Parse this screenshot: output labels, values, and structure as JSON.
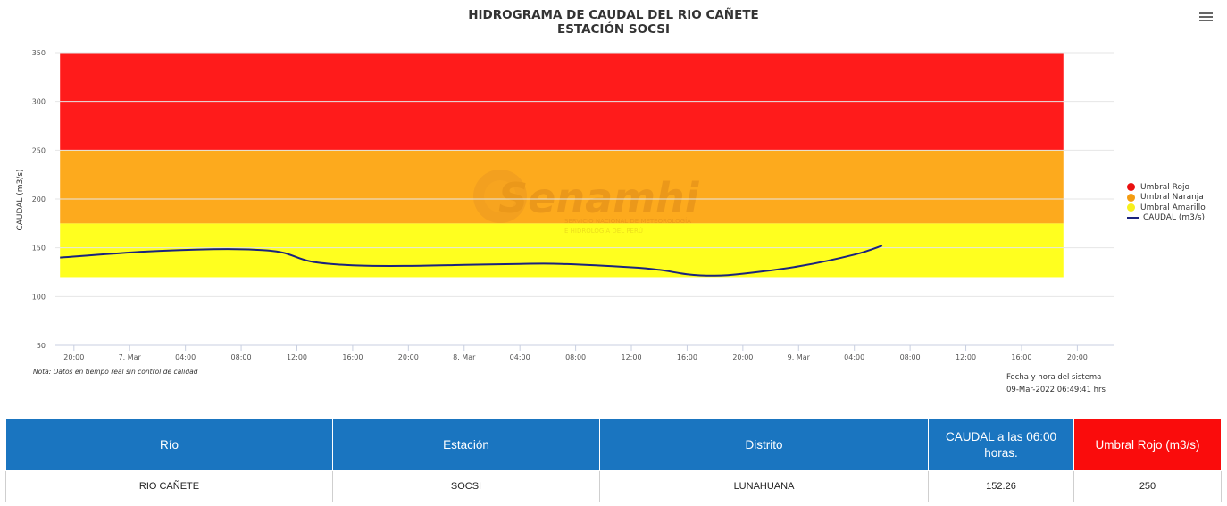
{
  "chart_title_line1": "HIDROGRAMA DE CAUDAL DEL RIO CAÑETE",
  "chart_title_line2": "ESTACIÓN SOCSI",
  "menu_icon": "hamburger-menu-icon",
  "watermark": {
    "name": "Senamhi",
    "subtitle_line1": "SERVICIO NACIONAL DE METEOROLOGÍA",
    "subtitle_line2": "E HIDROLOGÍA DEL PERÚ"
  },
  "note": "Nota: Datos en tiempo real sin control de calidad",
  "system_time_label": "Fecha y hora del sistema",
  "system_time_value": "09-Mar-2022 06:49:41 hrs",
  "legend": [
    {
      "label": "Umbral Rojo",
      "color": "#ea1010",
      "kind": "dot"
    },
    {
      "label": "Umbral Naranja",
      "color": "#f39c12",
      "kind": "dot"
    },
    {
      "label": "Umbral Amarillo",
      "color": "#f7f01c",
      "kind": "dot"
    },
    {
      "label": "CAUDAL (m3/s)",
      "color": "#1a237e",
      "kind": "line"
    }
  ],
  "chart_data": {
    "type": "line",
    "ylabel": "CAUDAL (m3/s)",
    "ylim": [
      50,
      350
    ],
    "yticks": [
      50,
      100,
      150,
      200,
      250,
      300,
      350
    ],
    "x_axis_start": "2022-03-06 18:40",
    "x_axis_end": "2022-03-09 22:40",
    "xticks": [
      {
        "t": "2022-03-06 20:00",
        "label": "20:00"
      },
      {
        "t": "2022-03-07 00:00",
        "label": "7. Mar"
      },
      {
        "t": "2022-03-07 04:00",
        "label": "04:00"
      },
      {
        "t": "2022-03-07 08:00",
        "label": "08:00"
      },
      {
        "t": "2022-03-07 12:00",
        "label": "12:00"
      },
      {
        "t": "2022-03-07 16:00",
        "label": "16:00"
      },
      {
        "t": "2022-03-07 20:00",
        "label": "20:00"
      },
      {
        "t": "2022-03-08 00:00",
        "label": "8. Mar"
      },
      {
        "t": "2022-03-08 04:00",
        "label": "04:00"
      },
      {
        "t": "2022-03-08 08:00",
        "label": "08:00"
      },
      {
        "t": "2022-03-08 12:00",
        "label": "12:00"
      },
      {
        "t": "2022-03-08 16:00",
        "label": "16:00"
      },
      {
        "t": "2022-03-08 20:00",
        "label": "20:00"
      },
      {
        "t": "2022-03-09 00:00",
        "label": "9. Mar"
      },
      {
        "t": "2022-03-09 04:00",
        "label": "04:00"
      },
      {
        "t": "2022-03-09 08:00",
        "label": "08:00"
      },
      {
        "t": "2022-03-09 12:00",
        "label": "12:00"
      },
      {
        "t": "2022-03-09 16:00",
        "label": "16:00"
      },
      {
        "t": "2022-03-09 20:00",
        "label": "20:00"
      }
    ],
    "bands": [
      {
        "name": "Umbral Amarillo",
        "from": 120,
        "to": 175,
        "color": "#ffff1f"
      },
      {
        "name": "Umbral Naranja",
        "from": 175,
        "to": 250,
        "color": "#fdaa1d"
      },
      {
        "name": "Umbral Rojo",
        "from": 250,
        "to": 350,
        "color": "#ff1b1b"
      }
    ],
    "band_span": {
      "from": "2022-03-06 19:00",
      "to": "2022-03-09 19:00"
    },
    "series": [
      {
        "name": "CAUDAL (m3/s)",
        "color": "#1a237e",
        "points": [
          {
            "t": "2022-03-06 19:00",
            "y": 140
          },
          {
            "t": "2022-03-07 01:00",
            "y": 146
          },
          {
            "t": "2022-03-07 06:00",
            "y": 148.5
          },
          {
            "t": "2022-03-07 09:00",
            "y": 148
          },
          {
            "t": "2022-03-07 11:00",
            "y": 145
          },
          {
            "t": "2022-03-07 13:00",
            "y": 136
          },
          {
            "t": "2022-03-07 16:00",
            "y": 132
          },
          {
            "t": "2022-03-07 20:00",
            "y": 131.5
          },
          {
            "t": "2022-03-08 00:00",
            "y": 132.5
          },
          {
            "t": "2022-03-08 04:00",
            "y": 133.5
          },
          {
            "t": "2022-03-08 07:00",
            "y": 133.5
          },
          {
            "t": "2022-03-08 12:00",
            "y": 130
          },
          {
            "t": "2022-03-08 14:00",
            "y": 127.5
          },
          {
            "t": "2022-03-08 16:00",
            "y": 123
          },
          {
            "t": "2022-03-08 18:00",
            "y": 121.5
          },
          {
            "t": "2022-03-08 20:00",
            "y": 123.5
          },
          {
            "t": "2022-03-09 00:00",
            "y": 131
          },
          {
            "t": "2022-03-09 04:00",
            "y": 143
          },
          {
            "t": "2022-03-09 06:00",
            "y": 152.26
          }
        ]
      }
    ]
  },
  "table": {
    "headers": [
      "Río",
      "Estación",
      "Distrito",
      "CAUDAL a las 06:00 horas.",
      "Umbral Rojo (m3/s)"
    ],
    "row": [
      "RIO CAÑETE",
      "SOCSI",
      "LUNAHUANA",
      "152.26",
      "250"
    ]
  }
}
